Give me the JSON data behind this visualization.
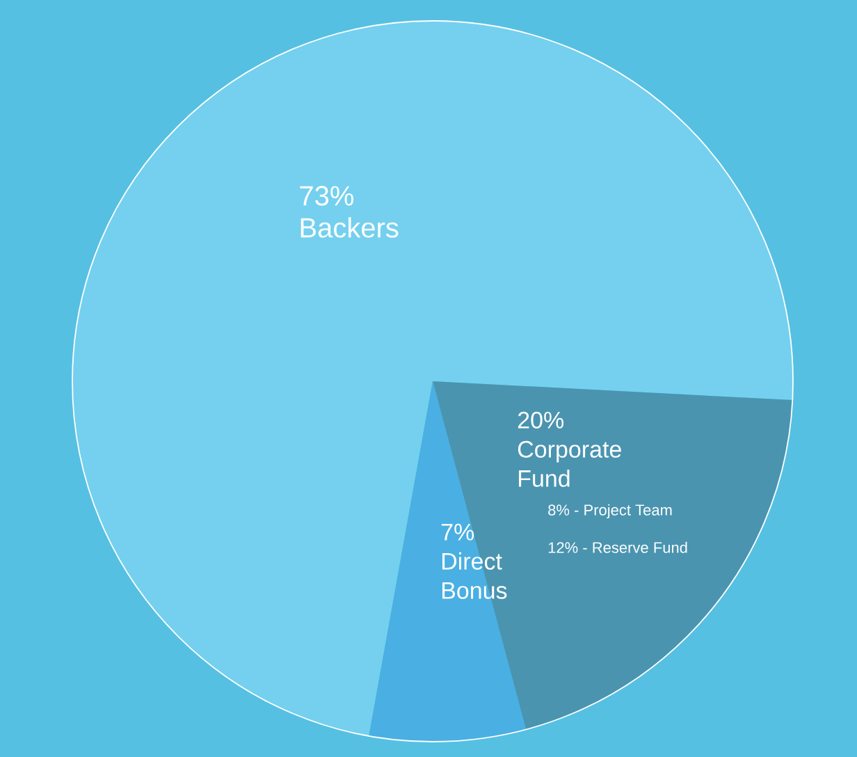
{
  "chart_data": {
    "type": "pie",
    "categories": [
      "Backers",
      "Corporate Fund",
      "Direct Bonus"
    ],
    "values": [
      73,
      20,
      7
    ],
    "value_labels": [
      "73%",
      "20%",
      "7%"
    ],
    "colors": [
      "#74d0ee",
      "#4a94b0",
      "#4aafe2"
    ],
    "annotations": [
      "8% - Project Team",
      "12% - Reserve Fund"
    ]
  }
}
